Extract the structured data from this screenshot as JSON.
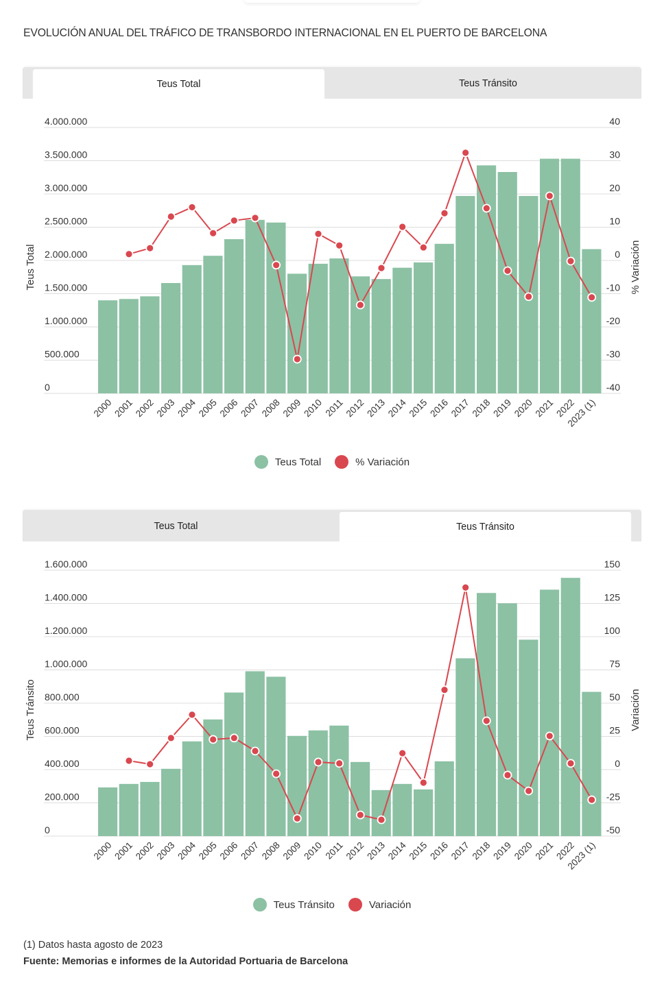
{
  "title": "EVOLUCIÓN ANUAL DEL TRÁFICO DE TRANSBORDO INTERNACIONAL EN EL PUERTO DE BARCELONA",
  "colors": {
    "bar": "#8cc1a4",
    "line": "#d9474f",
    "grid": "#dddddd",
    "tab_inactive": "#e6e6e6"
  },
  "tabs": [
    {
      "label": "Teus Total"
    },
    {
      "label": "Teus Tránsito"
    }
  ],
  "footnote": "(1) Datos hasta agosto de 2023",
  "source": "Fuente: Memorias e informes de la Autoridad Portuaria de Barcelona",
  "chart_data": [
    {
      "type": "bar",
      "active_tab": "Teus Total",
      "categories": [
        "2000",
        "2001",
        "2002",
        "2003",
        "2004",
        "2005",
        "2006",
        "2007",
        "2008",
        "2009",
        "2010",
        "2011",
        "2012",
        "2013",
        "2014",
        "2015",
        "2016",
        "2017",
        "2018",
        "2019",
        "2020",
        "2021",
        "2022",
        "2023 (1)"
      ],
      "series": [
        {
          "name": "Teus Total",
          "kind": "bar",
          "axis": "left",
          "values": [
            1400000,
            1420000,
            1460000,
            1660000,
            1930000,
            2070000,
            2320000,
            2610000,
            2570000,
            1800000,
            1950000,
            2030000,
            1760000,
            1720000,
            1890000,
            1970000,
            2250000,
            2970000,
            3430000,
            3330000,
            2970000,
            3530000,
            3530000,
            2170000
          ]
        },
        {
          "name": "% Variación",
          "kind": "line",
          "axis": "right",
          "values": [
            null,
            1.9,
            3.7,
            13.2,
            16.0,
            8.2,
            12.0,
            12.8,
            -1.4,
            -29.7,
            8.0,
            4.5,
            -13.4,
            -2.3,
            10.1,
            3.9,
            14.2,
            32.4,
            15.7,
            -3.1,
            -10.9,
            19.4,
            -0.2,
            -11.1
          ]
        }
      ],
      "ylabel": "Teus Total",
      "y2label": "% Variación",
      "ylim": [
        0,
        4000000
      ],
      "y2lim": [
        -40,
        40
      ],
      "yticks": [
        "0",
        "500.000",
        "1.000.000",
        "1.500.000",
        "2.000.000",
        "2.500.000",
        "3.000.000",
        "3.500.000",
        "4.000.000"
      ],
      "y2ticks": [
        "-40",
        "-30",
        "-20",
        "-10",
        "0",
        "10",
        "20",
        "30",
        "40"
      ],
      "legend": [
        "Teus Total",
        "% Variación"
      ],
      "legend_position": "bottom",
      "grid": true
    },
    {
      "type": "bar",
      "active_tab": "Teus Tránsito",
      "categories": [
        "2000",
        "2001",
        "2002",
        "2003",
        "2004",
        "2005",
        "2006",
        "2007",
        "2008",
        "2009",
        "2010",
        "2011",
        "2012",
        "2013",
        "2014",
        "2015",
        "2016",
        "2017",
        "2018",
        "2019",
        "2020",
        "2021",
        "2022",
        "2023 (1)"
      ],
      "series": [
        {
          "name": "Teus Tránsito",
          "kind": "bar",
          "axis": "left",
          "values": [
            293000,
            314000,
            326000,
            405000,
            570000,
            702000,
            864000,
            992000,
            959000,
            603000,
            636000,
            665000,
            446000,
            277000,
            314000,
            281000,
            450000,
            1070000,
            1463000,
            1401000,
            1182000,
            1483000,
            1554000,
            868000
          ]
        },
        {
          "name": "Variación",
          "kind": "line",
          "axis": "right",
          "values": [
            null,
            6.7,
            4.1,
            23.8,
            41.3,
            22.7,
            23.8,
            14.0,
            -3.1,
            -36.7,
            5.7,
            4.7,
            -34.1,
            -37.7,
            12.4,
            -9.8,
            60.0,
            137.0,
            36.7,
            -4.1,
            -16.0,
            25.3,
            4.7,
            -22.7
          ]
        }
      ],
      "ylabel": "Teus Tránsito",
      "y2label": "Variación",
      "ylim": [
        0,
        1600000
      ],
      "y2lim": [
        -50,
        150
      ],
      "yticks": [
        "0",
        "200.000",
        "400.000",
        "600.000",
        "800.000",
        "1.000.000",
        "1.200.000",
        "1.400.000",
        "1.600.000"
      ],
      "y2ticks": [
        "-50",
        "-25",
        "0",
        "25",
        "50",
        "75",
        "100",
        "125",
        "150"
      ],
      "legend": [
        "Teus Tránsito",
        "Variación"
      ],
      "legend_position": "bottom",
      "grid": true
    }
  ]
}
